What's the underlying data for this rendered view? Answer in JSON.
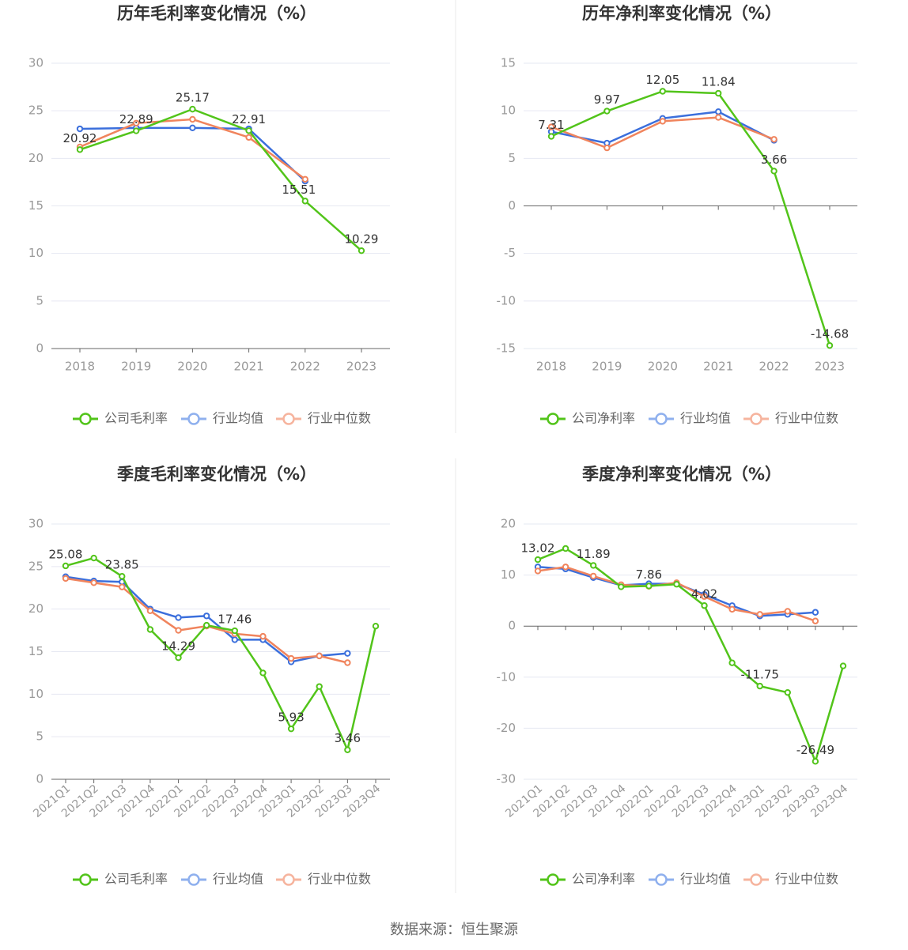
{
  "colors": {
    "company": "#52c41a",
    "avg": "#3b6fdc",
    "median": "#f0845d",
    "avg_legend": "#8fb0ee",
    "median_legend": "#f6b49e",
    "grid": "#e6e8f2",
    "axis": "#666666",
    "tick": "#999999",
    "title": "#333333",
    "divider": "#e8e8e8"
  },
  "source": "数据来源：恒生聚源",
  "chart_data": [
    {
      "type": "line",
      "title": "历年毛利率变化情况（%）",
      "categories": [
        "2018",
        "2019",
        "2020",
        "2021",
        "2022",
        "2023"
      ],
      "ylim": [
        0,
        30
      ],
      "yticks": [
        0,
        5,
        10,
        15,
        20,
        25,
        30
      ],
      "grid": true,
      "legend_position": "bottom",
      "rotate_x_labels": false,
      "series": [
        {
          "name": "公司毛利率",
          "role": "company",
          "values": [
            20.92,
            22.89,
            25.17,
            22.91,
            15.51,
            10.29
          ]
        },
        {
          "name": "行业均值",
          "role": "avg",
          "values": [
            23.1,
            23.2,
            23.2,
            23.1,
            17.6,
            null
          ]
        },
        {
          "name": "行业中位数",
          "role": "median",
          "values": [
            21.2,
            23.7,
            24.1,
            22.2,
            17.8,
            null
          ]
        }
      ],
      "labels": [
        {
          "text": "20.92",
          "index": 0
        },
        {
          "text": "22.89",
          "index": 1
        },
        {
          "text": "25.17",
          "index": 2
        },
        {
          "text": "22.91",
          "index": 3
        },
        {
          "text": "15.51",
          "index": 4
        },
        {
          "text": "10.29",
          "index": 5
        }
      ]
    },
    {
      "type": "line",
      "title": "历年净利率变化情况（%）",
      "categories": [
        "2018",
        "2019",
        "2020",
        "2021",
        "2022",
        "2023"
      ],
      "ylim": [
        -15,
        15
      ],
      "yticks": [
        -15,
        -10,
        -5,
        0,
        5,
        10,
        15
      ],
      "grid": true,
      "legend_position": "bottom",
      "rotate_x_labels": false,
      "series": [
        {
          "name": "公司净利率",
          "role": "company",
          "values": [
            7.31,
            9.97,
            12.05,
            11.84,
            3.66,
            -14.68
          ]
        },
        {
          "name": "行业均值",
          "role": "avg",
          "values": [
            7.8,
            6.6,
            9.2,
            9.9,
            6.9,
            null
          ]
        },
        {
          "name": "行业中位数",
          "role": "median",
          "values": [
            8.3,
            6.1,
            8.9,
            9.3,
            7.0,
            null
          ]
        }
      ],
      "labels": [
        {
          "text": "7.31",
          "index": 0
        },
        {
          "text": "9.97",
          "index": 1
        },
        {
          "text": "12.05",
          "index": 2
        },
        {
          "text": "11.84",
          "index": 3
        },
        {
          "text": "3.66",
          "index": 4
        },
        {
          "text": "-14.68",
          "index": 5
        }
      ]
    },
    {
      "type": "line",
      "title": "季度毛利率变化情况（%）",
      "categories": [
        "2021Q1",
        "2021Q2",
        "2021Q3",
        "2021Q4",
        "2022Q1",
        "2022Q2",
        "2022Q3",
        "2022Q4",
        "2023Q1",
        "2023Q2",
        "2023Q3",
        "2023Q4"
      ],
      "ylim": [
        0,
        30
      ],
      "yticks": [
        0,
        5,
        10,
        15,
        20,
        25,
        30
      ],
      "grid": true,
      "legend_position": "bottom",
      "rotate_x_labels": true,
      "series": [
        {
          "name": "公司毛利率",
          "role": "company",
          "values": [
            25.08,
            26.0,
            23.85,
            17.6,
            14.29,
            18.1,
            17.46,
            12.5,
            5.93,
            10.9,
            3.46,
            18.0
          ]
        },
        {
          "name": "行业均值",
          "role": "avg",
          "values": [
            23.8,
            23.3,
            23.2,
            20.0,
            19.0,
            19.2,
            16.4,
            16.4,
            13.8,
            14.5,
            14.8,
            null
          ]
        },
        {
          "name": "行业中位数",
          "role": "median",
          "values": [
            23.6,
            23.1,
            22.6,
            19.8,
            17.5,
            18.0,
            17.1,
            16.8,
            14.2,
            14.5,
            13.7,
            null
          ]
        }
      ],
      "labels": [
        {
          "text": "25.08",
          "index": 0
        },
        {
          "text": "23.85",
          "index": 2
        },
        {
          "text": "14.29",
          "index": 4
        },
        {
          "text": "17.46",
          "index": 6
        },
        {
          "text": "5.93",
          "index": 8
        },
        {
          "text": "3.46",
          "index": 10
        }
      ]
    },
    {
      "type": "line",
      "title": "季度净利率变化情况（%）",
      "categories": [
        "2021Q1",
        "2021Q2",
        "2021Q3",
        "2021Q4",
        "2022Q1",
        "2022Q2",
        "2022Q3",
        "2022Q4",
        "2023Q1",
        "2023Q2",
        "2023Q3",
        "2023Q4"
      ],
      "ylim": [
        -30,
        20
      ],
      "yticks": [
        -30,
        -20,
        -10,
        0,
        10,
        20
      ],
      "grid": true,
      "legend_position": "bottom",
      "rotate_x_labels": true,
      "series": [
        {
          "name": "公司净利率",
          "role": "company",
          "values": [
            13.02,
            15.2,
            11.89,
            7.7,
            7.86,
            8.2,
            4.02,
            -7.2,
            -11.75,
            -13.0,
            -26.49,
            -7.8
          ]
        },
        {
          "name": "行业均值",
          "role": "avg",
          "values": [
            11.6,
            11.2,
            9.5,
            8.0,
            8.3,
            8.3,
            6.2,
            4.0,
            2.0,
            2.3,
            2.7,
            null
          ]
        },
        {
          "name": "行业中位数",
          "role": "median",
          "values": [
            10.8,
            11.6,
            9.8,
            8.1,
            7.8,
            8.5,
            5.8,
            3.3,
            2.3,
            2.9,
            1.0,
            null
          ]
        }
      ],
      "labels": [
        {
          "text": "13.02",
          "index": 0
        },
        {
          "text": "11.89",
          "index": 2
        },
        {
          "text": "7.86",
          "index": 4
        },
        {
          "text": "4.02",
          "index": 6
        },
        {
          "text": "-11.75",
          "index": 8
        },
        {
          "text": "-26.49",
          "index": 10
        }
      ]
    }
  ]
}
